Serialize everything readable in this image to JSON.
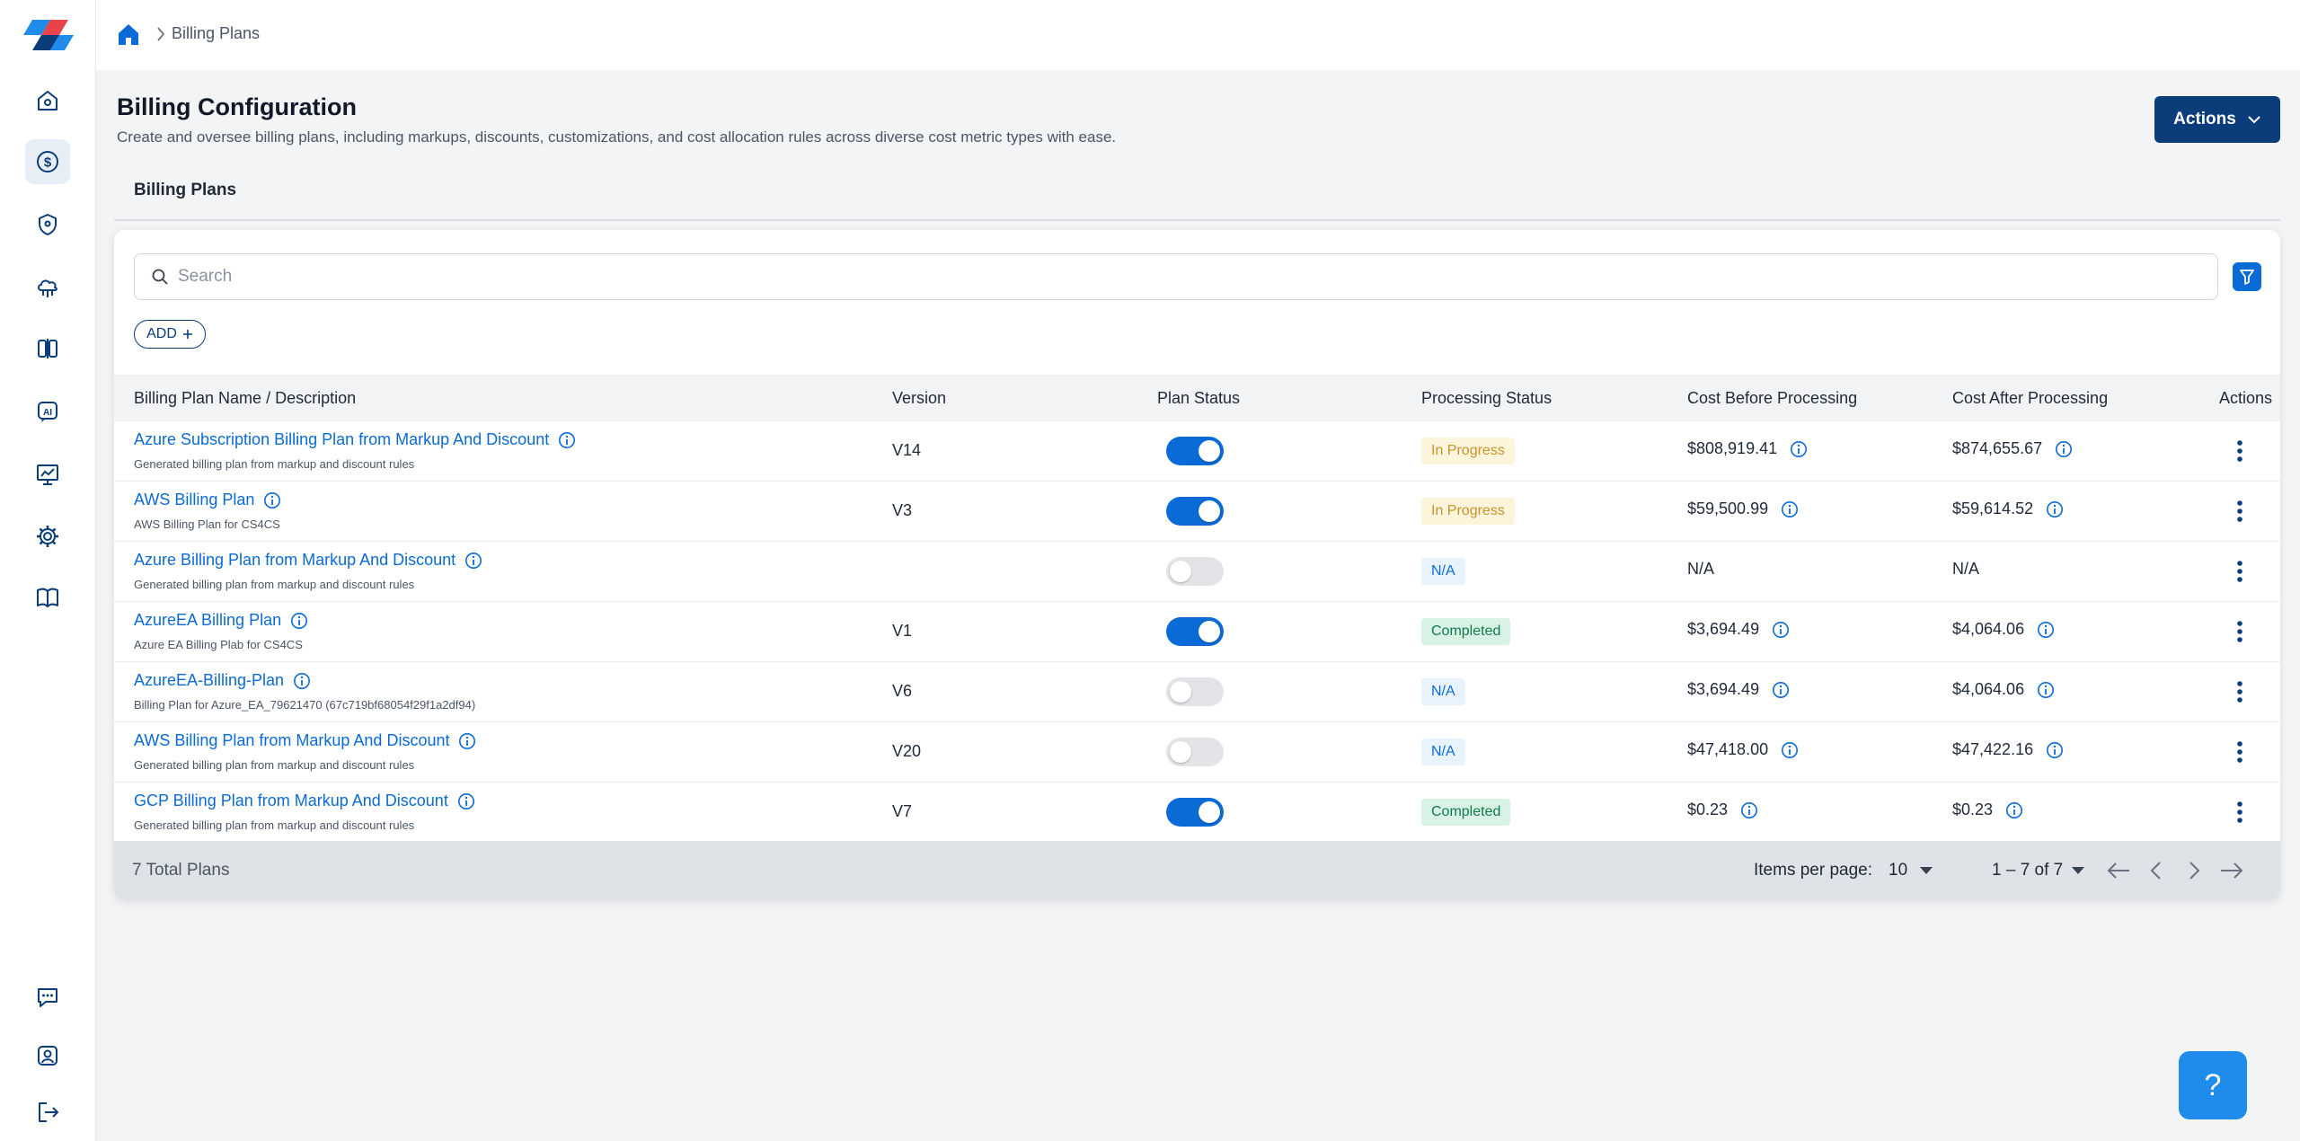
{
  "breadcrumb": {
    "current": "Billing Plans"
  },
  "header": {
    "title": "Billing Configuration",
    "subtitle": "Create and oversee billing plans, including markups, discounts, customizations, and cost allocation rules across diverse cost metric types with ease.",
    "actions_label": "Actions"
  },
  "tabs": {
    "billing_plans": "Billing Plans"
  },
  "search": {
    "placeholder": "Search"
  },
  "add_label": "ADD",
  "columns": {
    "name": "Billing Plan Name / Description",
    "version": "Version",
    "plan_status": "Plan Status",
    "processing_status": "Processing Status",
    "cost_before": "Cost Before Processing",
    "cost_after": "Cost After Processing",
    "actions": "Actions"
  },
  "rows": [
    {
      "name": "Azure Subscription Billing Plan from Markup And Discount",
      "description": "Generated billing plan from markup and discount rules",
      "version": "V14",
      "enabled": true,
      "processing": "In Progress",
      "cost_before": "$808,919.41",
      "cost_after": "$874,655.67"
    },
    {
      "name": "AWS Billing Plan",
      "description": "AWS Billing Plan for CS4CS",
      "version": "V3",
      "enabled": true,
      "processing": "In Progress",
      "cost_before": "$59,500.99",
      "cost_after": "$59,614.52"
    },
    {
      "name": "Azure Billing Plan from Markup And Discount",
      "description": "Generated billing plan from markup and discount rules",
      "version": "",
      "enabled": false,
      "processing": "N/A",
      "cost_before": "N/A",
      "cost_after": "N/A"
    },
    {
      "name": "AzureEA Billing Plan",
      "description": "Azure EA Billing Plab for CS4CS",
      "version": "V1",
      "enabled": true,
      "processing": "Completed",
      "cost_before": "$3,694.49",
      "cost_after": "$4,064.06"
    },
    {
      "name": "AzureEA-Billing-Plan",
      "description": "Billing Plan for Azure_EA_79621470 (67c719bf68054f29f1a2df94)",
      "version": "V6",
      "enabled": false,
      "processing": "N/A",
      "cost_before": "$3,694.49",
      "cost_after": "$4,064.06"
    },
    {
      "name": "AWS Billing Plan from Markup And Discount",
      "description": "Generated billing plan from markup and discount rules",
      "version": "V20",
      "enabled": false,
      "processing": "N/A",
      "cost_before": "$47,418.00",
      "cost_after": "$47,422.16"
    },
    {
      "name": "GCP Billing Plan from Markup And Discount",
      "description": "Generated billing plan from markup and discount rules",
      "version": "V7",
      "enabled": true,
      "processing": "Completed",
      "cost_before": "$0.23",
      "cost_after": "$0.23"
    }
  ],
  "footer": {
    "total": "7 Total Plans",
    "items_per_page_label": "Items per page:",
    "items_per_page": "10",
    "range": "1 – 7 of 7"
  },
  "help_label": "?",
  "colors": {
    "primary": "#0b6bd6",
    "navy": "#0a3d7a",
    "help": "#1f8ceb"
  }
}
